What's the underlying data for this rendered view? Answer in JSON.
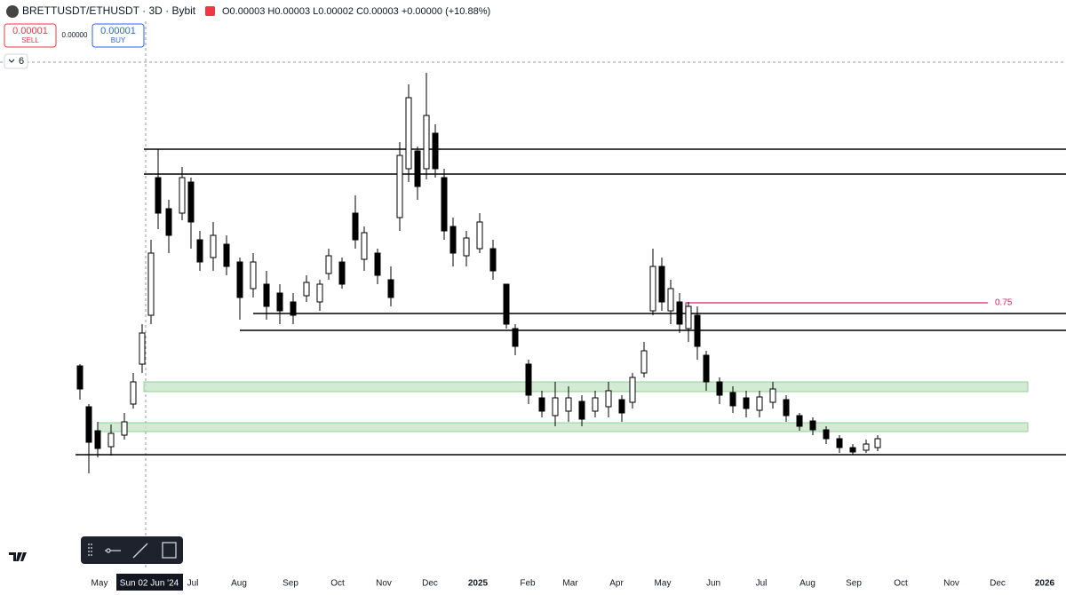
{
  "header": {
    "symbol": "BRETTUSDT/ETHUSDT · 3D · Bybit",
    "ohlc": "O0.00003 H0.00003 L0.00002 C0.00003 +0.00000 (+10.88%)"
  },
  "trade": {
    "sell_price": "0.00001",
    "sell_label": "SELL",
    "spread": "0.00000",
    "buy_price": "0.00001",
    "buy_label": "BUY"
  },
  "indicators_count": "6",
  "level_label": "0.75",
  "time_axis": {
    "labels": [
      "May",
      "Jul",
      "Aug",
      "Sep",
      "Oct",
      "Nov",
      "Dec",
      "2025",
      "Feb",
      "Mar",
      "Apr",
      "May",
      "Jun",
      "Jul",
      "Aug",
      "Sep",
      "Oct",
      "Nov",
      "Dec",
      "2026"
    ],
    "crosshair": "Sun 02 Jun '24"
  }
}
